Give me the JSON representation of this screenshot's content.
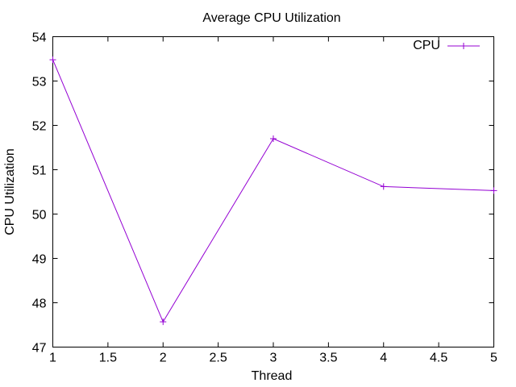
{
  "chart_data": {
    "type": "line",
    "title": "Average CPU Utilization",
    "xlabel": "Thread",
    "ylabel": "CPU Utilization",
    "xlim": [
      1,
      5
    ],
    "ylim": [
      47,
      54
    ],
    "xticks": [
      "1",
      "1.5",
      "2",
      "2.5",
      "3",
      "3.5",
      "4",
      "4.5",
      "5"
    ],
    "yticks": [
      "47",
      "48",
      "49",
      "50",
      "51",
      "52",
      "53",
      "54"
    ],
    "grid": false,
    "legend_position": "top-right",
    "series": [
      {
        "name": "CPU",
        "color": "#9400d3",
        "marker": "plus",
        "x": [
          1,
          2,
          3,
          4,
          5
        ],
        "y": [
          53.48,
          47.57,
          51.7,
          50.62,
          50.53
        ]
      }
    ]
  }
}
